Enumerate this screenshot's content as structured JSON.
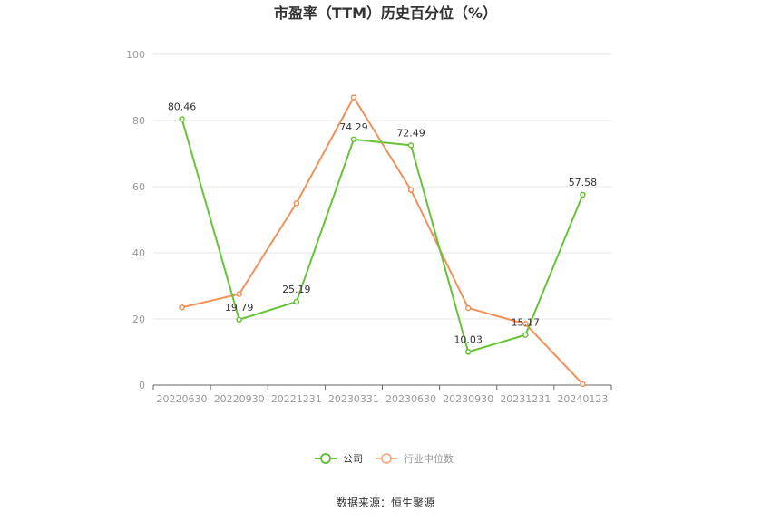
{
  "chart_data": {
    "type": "line",
    "title": "市盈率（TTM）历史百分位（%）",
    "xlabel": "",
    "ylabel": "",
    "categories": [
      "20220630",
      "20220930",
      "20221231",
      "20230331",
      "20230630",
      "20230930",
      "20231231",
      "20240123"
    ],
    "ylim": [
      0,
      100
    ],
    "yticks": [
      0,
      20,
      40,
      60,
      80,
      100
    ],
    "grid": true,
    "legend": "bottom-center",
    "series": [
      {
        "name": "公司",
        "color": "#67c23a",
        "values": [
          80.46,
          19.79,
          25.19,
          74.29,
          72.49,
          10.03,
          15.17,
          57.58
        ],
        "labels": [
          "80.46",
          "19.79",
          "25.19",
          "74.29",
          "72.49",
          "10.03",
          "15.17",
          "57.58"
        ]
      },
      {
        "name": "行业中位数",
        "color": "#f0905a",
        "values": [
          23.5,
          27.5,
          55.0,
          87.0,
          59.0,
          23.3,
          18.5,
          0.3
        ],
        "labels": []
      }
    ],
    "source": "数据来源：恒生聚源"
  }
}
